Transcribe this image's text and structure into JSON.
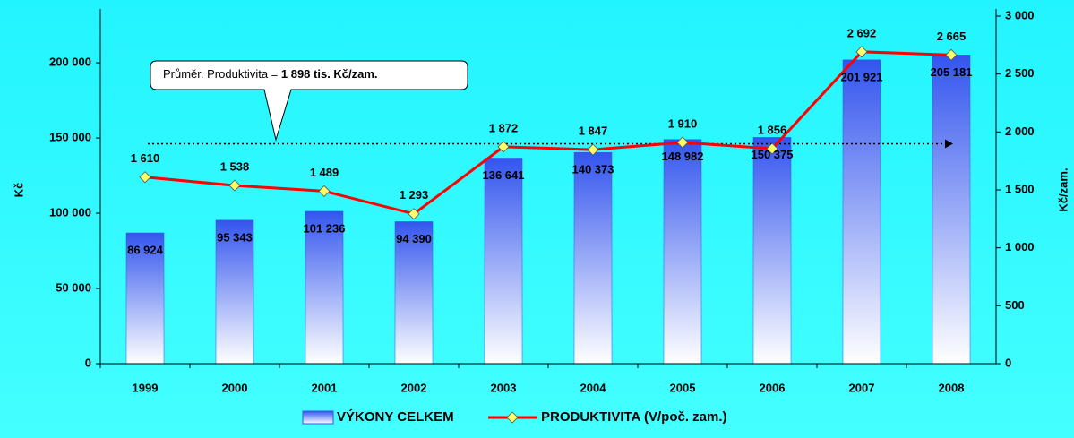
{
  "chart_data": {
    "type": "bar_line",
    "categories": [
      "1999",
      "2000",
      "2001",
      "2002",
      "2003",
      "2004",
      "2005",
      "2006",
      "2007",
      "2008"
    ],
    "series": [
      {
        "name": "VÝKONY CELKEM",
        "type": "bar",
        "color": "#3355ee",
        "values": [
          86924,
          95343,
          101236,
          94390,
          136641,
          140373,
          148982,
          150375,
          201921,
          205181
        ],
        "value_labels": [
          "86 924",
          "95 343",
          "101 236",
          "94 390",
          "136 641",
          "140 373",
          "148 982",
          "150 375",
          "201 921",
          "205 181"
        ]
      },
      {
        "name": "PRODUKTIVITA (V/poč. zam.)",
        "type": "line",
        "axis": "y2",
        "color": "#ff0000",
        "marker_color": "#ffff66",
        "values": [
          1610,
          1538,
          1489,
          1293,
          1872,
          1847,
          1910,
          1856,
          2692,
          2665
        ],
        "value_labels": [
          "1 610",
          "1 538",
          "1 489",
          "1 293",
          "1 872",
          "1 847",
          "1 910",
          "1 856",
          "2 692",
          "2 665"
        ]
      }
    ],
    "ylabel": "Kč",
    "y2label": "Kč/zam.",
    "ylim": [
      0,
      231000
    ],
    "yticks": [
      0,
      {
        "value": 50000,
        "label": "50 000"
      },
      {
        "value": 100000,
        "label": "100 000"
      },
      {
        "value": 150000,
        "label": "150 000"
      },
      {
        "value": 200000,
        "label": "200 000"
      }
    ],
    "y2lim": [
      0,
      3000
    ],
    "y2ticks": [
      0,
      500,
      {
        "value": 1000,
        "label": "1 000"
      },
      {
        "value": 1500,
        "label": "1 500"
      },
      {
        "value": 2000,
        "label": "2 000"
      },
      {
        "value": 2500,
        "label": "2 500"
      },
      {
        "value": 3000,
        "label": "3 000"
      }
    ],
    "annotation": {
      "text": "Průměr. Produktivita = ",
      "value_text": "1 898 tis. Kč/zam.",
      "value": 1898,
      "axis": "y2"
    },
    "legend": "bottom"
  }
}
